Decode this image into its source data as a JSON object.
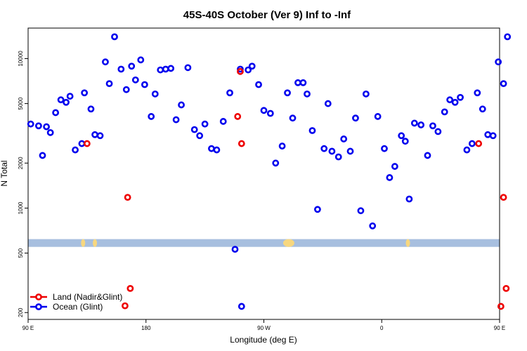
{
  "chart_data": {
    "type": "scatter",
    "title": "45S-40S October (Ver 9)   Inf to -Inf",
    "xlabel": "Longitude (deg E)",
    "ylabel": "N Total",
    "y_scale": "log",
    "xlim": [
      90,
      450
    ],
    "ylim": [
      180,
      16000
    ],
    "x_ticks": [
      {
        "value": 90,
        "label": "90 E"
      },
      {
        "value": 180,
        "label": "180"
      },
      {
        "value": 270,
        "label": "90 W"
      },
      {
        "value": 360,
        "label": "0"
      },
      {
        "value": 450,
        "label": "90 E"
      },
      {
        "value": 540,
        "label": "180"
      }
    ],
    "y_ticks": [
      {
        "value": 200,
        "label": "200"
      },
      {
        "value": 500,
        "label": "500"
      },
      {
        "value": 1000,
        "label": "1000"
      },
      {
        "value": 2000,
        "label": "2000"
      },
      {
        "value": 5000,
        "label": "5000"
      },
      {
        "value": 10000,
        "label": "10000"
      }
    ],
    "legend": {
      "position": "bottom-left",
      "entries": [
        {
          "name": "Land (Nadir&Glint)",
          "color": "#ee0000"
        },
        {
          "name": "Ocean (Glint)",
          "color": "#0000ee"
        }
      ]
    },
    "coverage_band": {
      "y_range": [
        550,
        620
      ],
      "color": "#a7bfdf",
      "land_color": "#f7d77f",
      "land_x": [
        132,
        141,
        289,
        380,
        473,
        483
      ]
    },
    "series": [
      {
        "name": "Ocean (Glint)",
        "color": "#0000ee",
        "points": [
          [
            92,
            3650
          ],
          [
            98,
            3550
          ],
          [
            101,
            2250
          ],
          [
            104,
            3500
          ],
          [
            107,
            3200
          ],
          [
            111,
            4350
          ],
          [
            115,
            5300
          ],
          [
            119,
            5100
          ],
          [
            122,
            5600
          ],
          [
            126,
            2450
          ],
          [
            131,
            2700
          ],
          [
            133,
            5900
          ],
          [
            138,
            4600
          ],
          [
            141,
            3100
          ],
          [
            145,
            3050
          ],
          [
            149,
            9500
          ],
          [
            152,
            6800
          ],
          [
            156,
            14000
          ],
          [
            161,
            8500
          ],
          [
            165,
            6200
          ],
          [
            169,
            8900
          ],
          [
            172,
            7200
          ],
          [
            176,
            9800
          ],
          [
            179,
            6700
          ],
          [
            184,
            4100
          ],
          [
            187,
            5800
          ],
          [
            191,
            8400
          ],
          [
            195,
            8500
          ],
          [
            199,
            8600
          ],
          [
            203,
            3900
          ],
          [
            207,
            4900
          ],
          [
            212,
            8700
          ],
          [
            217,
            3350
          ],
          [
            221,
            3050
          ],
          [
            225,
            3650
          ],
          [
            230,
            2500
          ],
          [
            234,
            2450
          ],
          [
            239,
            3800
          ],
          [
            244,
            5900
          ],
          [
            248,
            530
          ],
          [
            252,
            8500
          ],
          [
            258,
            8400
          ],
          [
            261,
            8900
          ],
          [
            266,
            6700
          ],
          [
            270,
            4500
          ],
          [
            275,
            4300
          ],
          [
            279,
            2000
          ],
          [
            284,
            2600
          ],
          [
            288,
            5900
          ],
          [
            292,
            4000
          ],
          [
            296,
            6900
          ],
          [
            300,
            6900
          ],
          [
            303,
            5800
          ],
          [
            307,
            3300
          ],
          [
            311,
            980
          ],
          [
            316,
            2500
          ],
          [
            319,
            5000
          ],
          [
            322,
            2400
          ],
          [
            327,
            2200
          ],
          [
            331,
            2900
          ],
          [
            336,
            2400
          ],
          [
            340,
            4000
          ],
          [
            344,
            960
          ],
          [
            348,
            5800
          ],
          [
            353,
            760
          ],
          [
            357,
            4100
          ],
          [
            362,
            2500
          ],
          [
            366,
            1600
          ],
          [
            370,
            1900
          ],
          [
            375,
            3050
          ],
          [
            378,
            2800
          ],
          [
            381,
            1150
          ],
          [
            385,
            3700
          ],
          [
            390,
            3600
          ],
          [
            395,
            2250
          ],
          [
            399,
            3550
          ],
          [
            403,
            3250
          ],
          [
            408,
            4400
          ],
          [
            412,
            5300
          ],
          [
            416,
            5100
          ],
          [
            420,
            5500
          ],
          [
            425,
            2450
          ],
          [
            429,
            2700
          ],
          [
            433,
            5900
          ],
          [
            437,
            4600
          ],
          [
            441,
            3100
          ],
          [
            445,
            3050
          ],
          [
            449,
            9500
          ],
          [
            453,
            6800
          ],
          [
            456,
            14000
          ],
          [
            253,
            220
          ]
        ]
      },
      {
        "name": "Land (Nadir&Glint)",
        "color": "#ee0000",
        "points": [
          [
            135,
            2700
          ],
          [
            164,
            222
          ],
          [
            166,
            1180
          ],
          [
            168,
            290
          ],
          [
            252,
            8200
          ],
          [
            250,
            4100
          ],
          [
            253,
            2700
          ],
          [
            434,
            2700
          ],
          [
            451,
            220
          ],
          [
            453,
            1180
          ],
          [
            455,
            290
          ]
        ]
      }
    ]
  }
}
